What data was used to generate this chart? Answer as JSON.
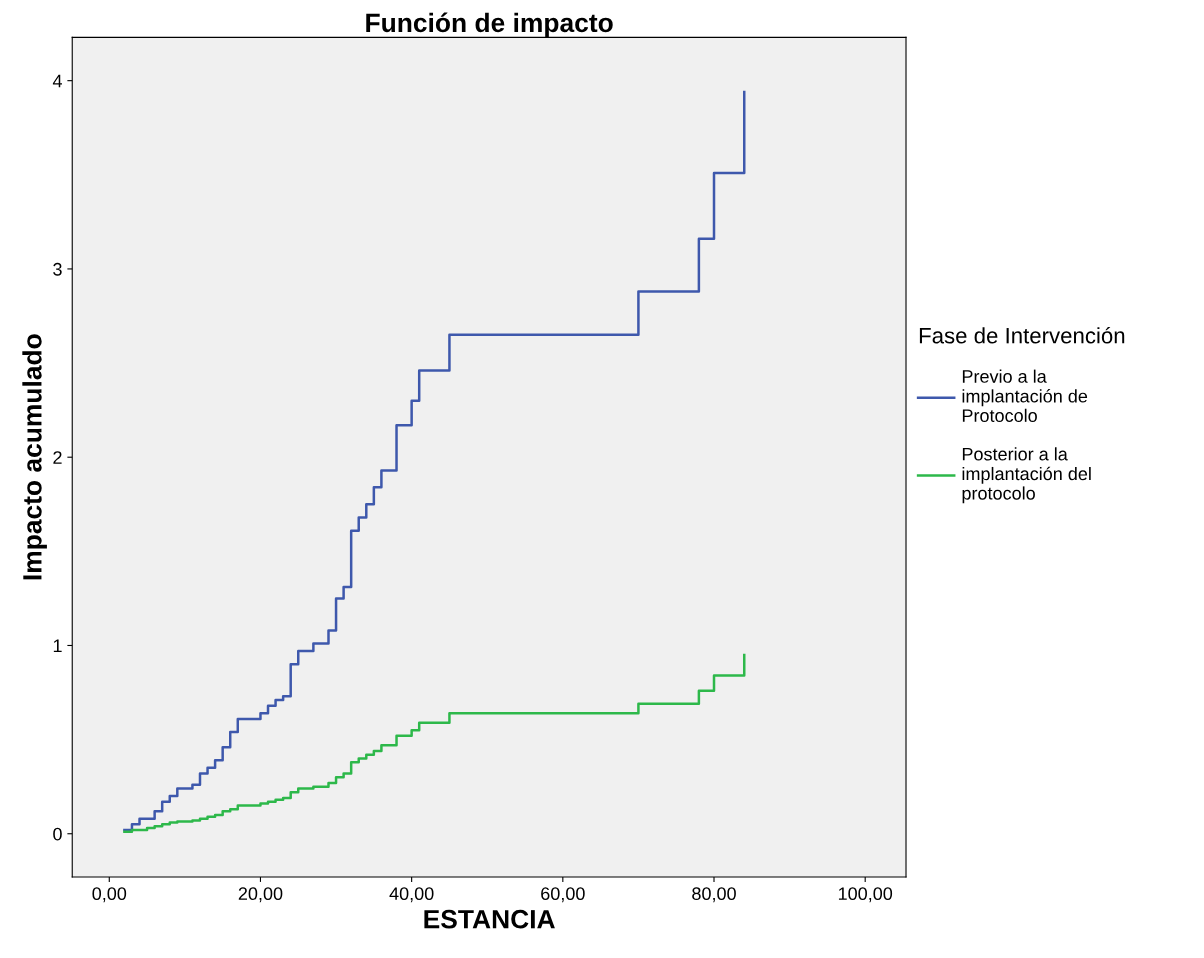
{
  "chart_data": {
    "type": "step",
    "title": "Función de impacto",
    "xlabel": "ESTANCIA",
    "ylabel": "Impacto acumulado",
    "legend_title": "Fase de Intervención",
    "legend": "right",
    "grid": false,
    "xlim": [
      -4.9,
      105.4
    ],
    "ylim": [
      -0.23,
      4.23
    ],
    "xticks": [
      {
        "value": 0,
        "label": "0,00"
      },
      {
        "value": 20,
        "label": "20,00"
      },
      {
        "value": 40,
        "label": "40,00"
      },
      {
        "value": 60,
        "label": "60,00"
      },
      {
        "value": 80,
        "label": "80,00"
      },
      {
        "value": 100,
        "label": "100,00"
      }
    ],
    "yticks": [
      0,
      1,
      2,
      3,
      4
    ],
    "series": [
      {
        "name": " Previo a la implantación de Protocolo",
        "color": "#3e58ac",
        "x": [
          2,
          3,
          4,
          6,
          7,
          8,
          9,
          11,
          12,
          13,
          14,
          15,
          16,
          17,
          20,
          21,
          22,
          23,
          24,
          25,
          27,
          29,
          30,
          31,
          32,
          33,
          34,
          35,
          36,
          38,
          40,
          41,
          45,
          70,
          78,
          80,
          84
        ],
        "values": [
          0.02,
          0.05,
          0.08,
          0.12,
          0.17,
          0.2,
          0.24,
          0.26,
          0.32,
          0.35,
          0.39,
          0.46,
          0.54,
          0.61,
          0.64,
          0.68,
          0.71,
          0.73,
          0.9,
          0.97,
          1.01,
          1.08,
          1.25,
          1.31,
          1.61,
          1.68,
          1.75,
          1.84,
          1.93,
          2.17,
          2.3,
          2.46,
          2.65,
          2.88,
          3.16,
          3.51,
          3.94
        ]
      },
      {
        "name": "Posterior a la implantación del protocolo",
        "color": "#2db84a",
        "x": [
          2,
          3,
          5,
          6,
          7,
          8,
          9,
          11,
          12,
          13,
          14,
          15,
          16,
          17,
          20,
          21,
          22,
          23,
          24,
          25,
          27,
          29,
          30,
          31,
          32,
          33,
          34,
          35,
          36,
          38,
          40,
          41,
          45,
          70,
          78,
          80,
          84
        ],
        "values": [
          0.01,
          0.02,
          0.03,
          0.04,
          0.05,
          0.06,
          0.065,
          0.07,
          0.08,
          0.09,
          0.1,
          0.12,
          0.13,
          0.15,
          0.16,
          0.17,
          0.18,
          0.19,
          0.22,
          0.24,
          0.25,
          0.27,
          0.3,
          0.32,
          0.38,
          0.4,
          0.42,
          0.44,
          0.47,
          0.52,
          0.55,
          0.59,
          0.64,
          0.69,
          0.76,
          0.84,
          0.95
        ]
      }
    ]
  }
}
